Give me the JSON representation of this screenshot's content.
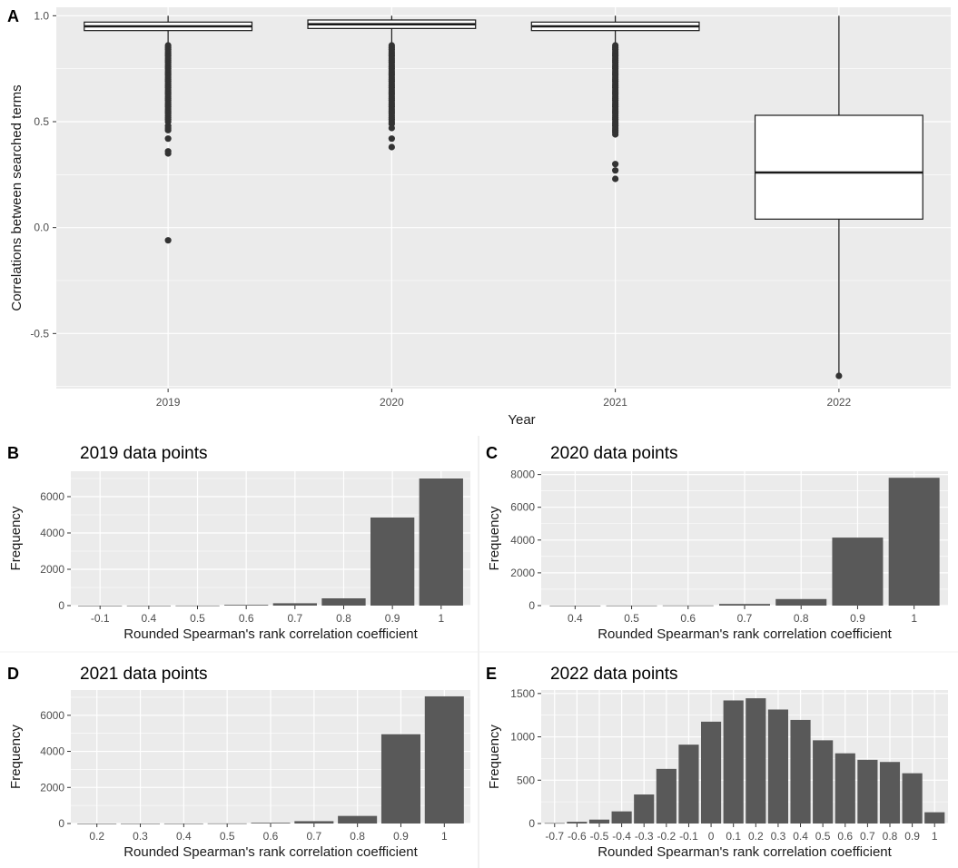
{
  "chart_data": [
    {
      "panel": "A",
      "type": "boxplot",
      "xlabel": "Year",
      "ylabel": "Correlations between searched terms",
      "ylim": [
        -0.76,
        1.04
      ],
      "yticks": [
        1.0,
        0.5,
        0.0,
        -0.5
      ],
      "ytick_labels": [
        "1.0",
        "0.5",
        "0.0",
        "-0.5"
      ],
      "categories": [
        "2019",
        "2020",
        "2021",
        "2022"
      ],
      "boxes": [
        {
          "q1": 0.93,
          "median": 0.95,
          "q3": 0.97,
          "whisker_low": 0.87,
          "whisker_high": 1.0,
          "outliers": [
            0.86,
            0.85,
            0.84,
            0.83,
            0.82,
            0.81,
            0.8,
            0.79,
            0.78,
            0.77,
            0.76,
            0.75,
            0.74,
            0.73,
            0.72,
            0.71,
            0.7,
            0.69,
            0.68,
            0.67,
            0.66,
            0.65,
            0.64,
            0.63,
            0.62,
            0.61,
            0.6,
            0.59,
            0.58,
            0.57,
            0.56,
            0.55,
            0.54,
            0.53,
            0.52,
            0.51,
            0.5,
            0.48,
            0.47,
            0.46,
            0.42,
            0.36,
            0.35,
            -0.06
          ]
        },
        {
          "q1": 0.94,
          "median": 0.96,
          "q3": 0.98,
          "whisker_low": 0.87,
          "whisker_high": 1.0,
          "outliers": [
            0.86,
            0.85,
            0.84,
            0.83,
            0.82,
            0.81,
            0.8,
            0.79,
            0.78,
            0.77,
            0.76,
            0.75,
            0.74,
            0.73,
            0.72,
            0.71,
            0.7,
            0.69,
            0.68,
            0.67,
            0.66,
            0.65,
            0.64,
            0.63,
            0.62,
            0.61,
            0.6,
            0.59,
            0.58,
            0.57,
            0.56,
            0.55,
            0.54,
            0.53,
            0.52,
            0.51,
            0.5,
            0.49,
            0.47,
            0.42,
            0.38
          ]
        },
        {
          "q1": 0.93,
          "median": 0.95,
          "q3": 0.97,
          "whisker_low": 0.87,
          "whisker_high": 1.0,
          "outliers": [
            0.86,
            0.85,
            0.84,
            0.83,
            0.82,
            0.81,
            0.8,
            0.79,
            0.78,
            0.77,
            0.76,
            0.75,
            0.74,
            0.73,
            0.72,
            0.71,
            0.7,
            0.69,
            0.68,
            0.67,
            0.66,
            0.65,
            0.64,
            0.63,
            0.62,
            0.61,
            0.6,
            0.59,
            0.58,
            0.57,
            0.56,
            0.55,
            0.54,
            0.53,
            0.52,
            0.51,
            0.5,
            0.49,
            0.48,
            0.47,
            0.46,
            0.45,
            0.44,
            0.3,
            0.27,
            0.23
          ]
        },
        {
          "q1": 0.04,
          "median": 0.26,
          "q3": 0.53,
          "whisker_low": -0.69,
          "whisker_high": 1.0,
          "outliers": [
            -0.7
          ]
        }
      ]
    },
    {
      "panel": "B",
      "type": "bar",
      "title": "2019 data points",
      "xlabel": "Rounded Spearman's rank correlation coefficient",
      "ylabel": "Frequency",
      "ylim": [
        0,
        7400
      ],
      "yticks": [
        0,
        2000,
        4000,
        6000
      ],
      "categories": [
        "-0.1",
        "0.4",
        "0.5",
        "0.6",
        "0.7",
        "0.8",
        "0.9",
        "1"
      ],
      "values": [
        1,
        2,
        5,
        40,
        130,
        400,
        4850,
        7000
      ]
    },
    {
      "panel": "C",
      "type": "bar",
      "title": "2020 data points",
      "xlabel": "Rounded Spearman's rank correlation coefficient",
      "ylabel": "Frequency",
      "ylim": [
        0,
        8200
      ],
      "yticks": [
        0,
        2000,
        4000,
        6000,
        8000
      ],
      "categories": [
        "0.4",
        "0.5",
        "0.6",
        "0.7",
        "0.8",
        "0.9",
        "1"
      ],
      "values": [
        2,
        5,
        10,
        100,
        400,
        4150,
        7800
      ]
    },
    {
      "panel": "D",
      "type": "bar",
      "title": "2021 data points",
      "xlabel": "Rounded Spearman's rank correlation coefficient",
      "ylabel": "Frequency",
      "ylim": [
        0,
        7400
      ],
      "yticks": [
        0,
        2000,
        4000,
        6000
      ],
      "categories": [
        "0.2",
        "0.3",
        "0.4",
        "0.5",
        "0.6",
        "0.7",
        "0.8",
        "0.9",
        "1"
      ],
      "values": [
        1,
        2,
        3,
        8,
        40,
        130,
        420,
        4950,
        7050
      ]
    },
    {
      "panel": "E",
      "type": "bar",
      "title": "2022 data points",
      "xlabel": "Rounded Spearman's rank correlation coefficient",
      "ylabel": "Frequency",
      "ylim": [
        0,
        1540
      ],
      "yticks": [
        0,
        500,
        1000,
        1500
      ],
      "categories": [
        "-0.7",
        "-0.6",
        "-0.5",
        "-0.4",
        "-0.3",
        "-0.2",
        "-0.1",
        "0",
        "0.1",
        "0.2",
        "0.3",
        "0.4",
        "0.5",
        "0.6",
        "0.7",
        "0.8",
        "0.9",
        "1"
      ],
      "values": [
        5,
        20,
        45,
        140,
        335,
        630,
        910,
        1175,
        1420,
        1445,
        1315,
        1195,
        960,
        810,
        735,
        710,
        580,
        130
      ]
    }
  ]
}
